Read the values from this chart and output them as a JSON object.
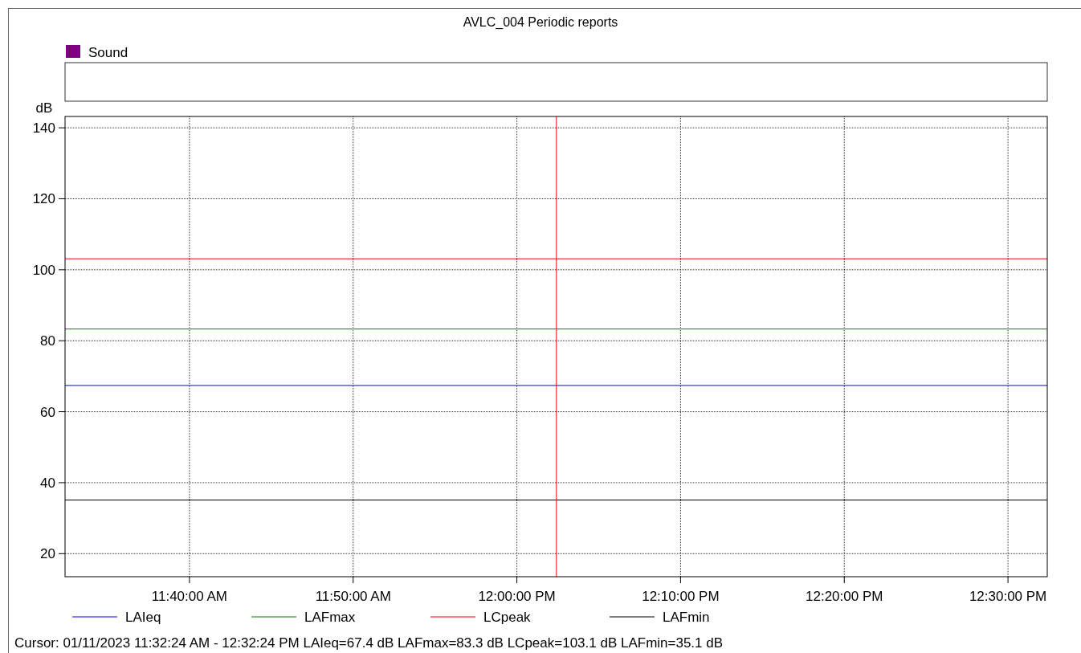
{
  "chart_data": {
    "type": "line",
    "title": "AVLC_004 Periodic reports",
    "ylabel": "dB",
    "x": [
      "2023-01-11T11:32:24",
      "2023-01-11T12:32:24"
    ],
    "xlim": [
      "2023-01-11T11:32:24",
      "2023-01-11T12:32:24"
    ],
    "xticks": [
      {
        "value": "2023-01-11T11:40:00",
        "label": "11:40:00 AM"
      },
      {
        "value": "2023-01-11T11:50:00",
        "label": "11:50:00 AM"
      },
      {
        "value": "2023-01-11T12:00:00",
        "label": "12:00:00 PM"
      },
      {
        "value": "2023-01-11T12:10:00",
        "label": "12:10:00 PM"
      },
      {
        "value": "2023-01-11T12:20:00",
        "label": "12:20:00 PM"
      },
      {
        "value": "2023-01-11T12:30:00",
        "label": "12:30:00 PM"
      }
    ],
    "ylim": [
      13.5,
      143.2
    ],
    "yticks": [
      20,
      40,
      60,
      80,
      100,
      120,
      140
    ],
    "series": [
      {
        "name": "LAIeq",
        "color": "#0000ff",
        "values": [
          67.4,
          67.4
        ]
      },
      {
        "name": "LAFmax",
        "color": "#008000",
        "values": [
          83.3,
          83.3
        ]
      },
      {
        "name": "LCpeak",
        "color": "#ff0000",
        "values": [
          103.1,
          103.1
        ]
      },
      {
        "name": "LAFmin",
        "color": "#000000",
        "values": [
          35.1,
          35.1
        ]
      }
    ],
    "ref_lines": [
      {
        "axis": "x",
        "value": "2023-01-11T12:02:25",
        "color": "#ff0000"
      }
    ],
    "annotations": [
      "Sound",
      "Cursor: 01/11/2023 11:32:24 AM - 12:32:24 PM  LAIeq=67.4 dB  LAFmax=83.3 dB  LCpeak=103.1 dB  LAFmin=35.1 dB"
    ],
    "grid": true,
    "legend": "bottom",
    "marker": "none",
    "line_style": "solid"
  }
}
